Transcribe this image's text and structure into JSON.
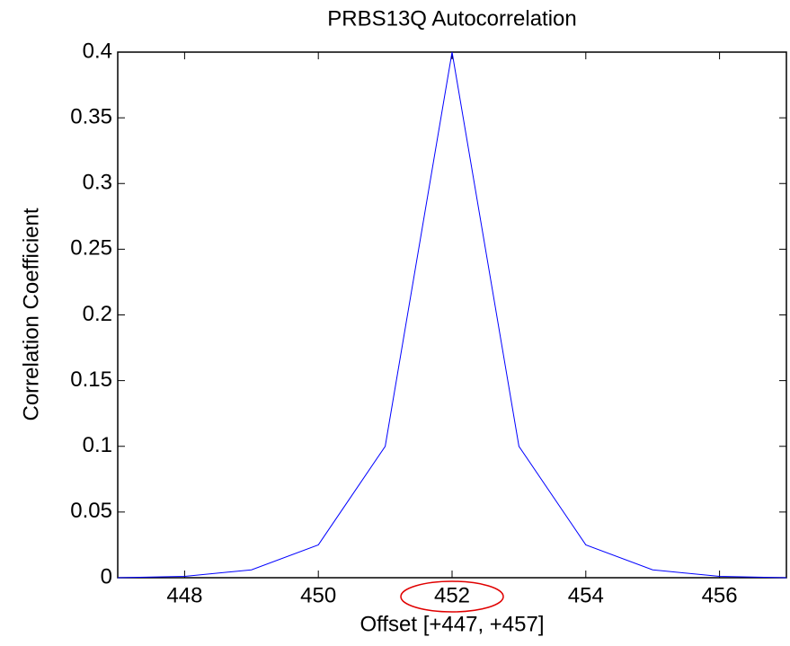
{
  "chart_data": {
    "type": "line",
    "title": "PRBS13Q Autocorrelation",
    "x_label": "Offset [+447, +457]",
    "y_label": "Correlation Coefficient",
    "x": [
      447,
      448,
      449,
      450,
      451,
      452,
      453,
      454,
      455,
      456,
      457
    ],
    "series": [
      {
        "color": "#0000ff",
        "values": [
          0,
          0.001,
          0.006,
          0.025,
          0.1,
          0.4,
          0.1,
          0.025,
          0.006,
          0.001,
          0
        ]
      }
    ],
    "xlim": [
      447,
      457
    ],
    "xticks": [
      448,
      450,
      452,
      454,
      456
    ],
    "ylim": [
      0,
      0.4
    ],
    "yticks": [
      0,
      0.05,
      0.1,
      0.15,
      0.2,
      0.25,
      0.3,
      0.35,
      0.4
    ]
  }
}
